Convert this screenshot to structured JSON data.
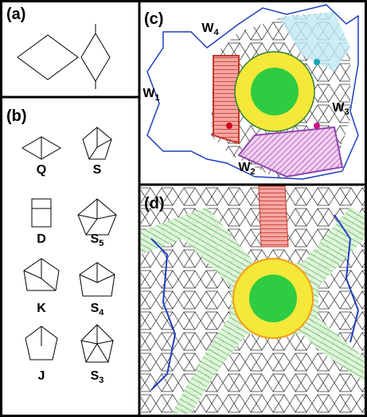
{
  "panels": {
    "a": {
      "label": "(a)"
    },
    "b": {
      "label": "(b)"
    },
    "c": {
      "label": "(c)"
    },
    "d": {
      "label": "(d)"
    }
  },
  "tiles": [
    {
      "name": "Q"
    },
    {
      "name": "S"
    },
    {
      "name": "D"
    },
    {
      "name": "S",
      "sub": "5"
    },
    {
      "name": "K"
    },
    {
      "name": "S",
      "sub": "4"
    },
    {
      "name": "J"
    },
    {
      "name": "S",
      "sub": "3"
    }
  ],
  "walls": [
    {
      "name": "W",
      "sub": "4"
    },
    {
      "name": "W",
      "sub": "1"
    },
    {
      "name": "W",
      "sub": "3"
    },
    {
      "name": "W",
      "sub": "2"
    }
  ]
}
